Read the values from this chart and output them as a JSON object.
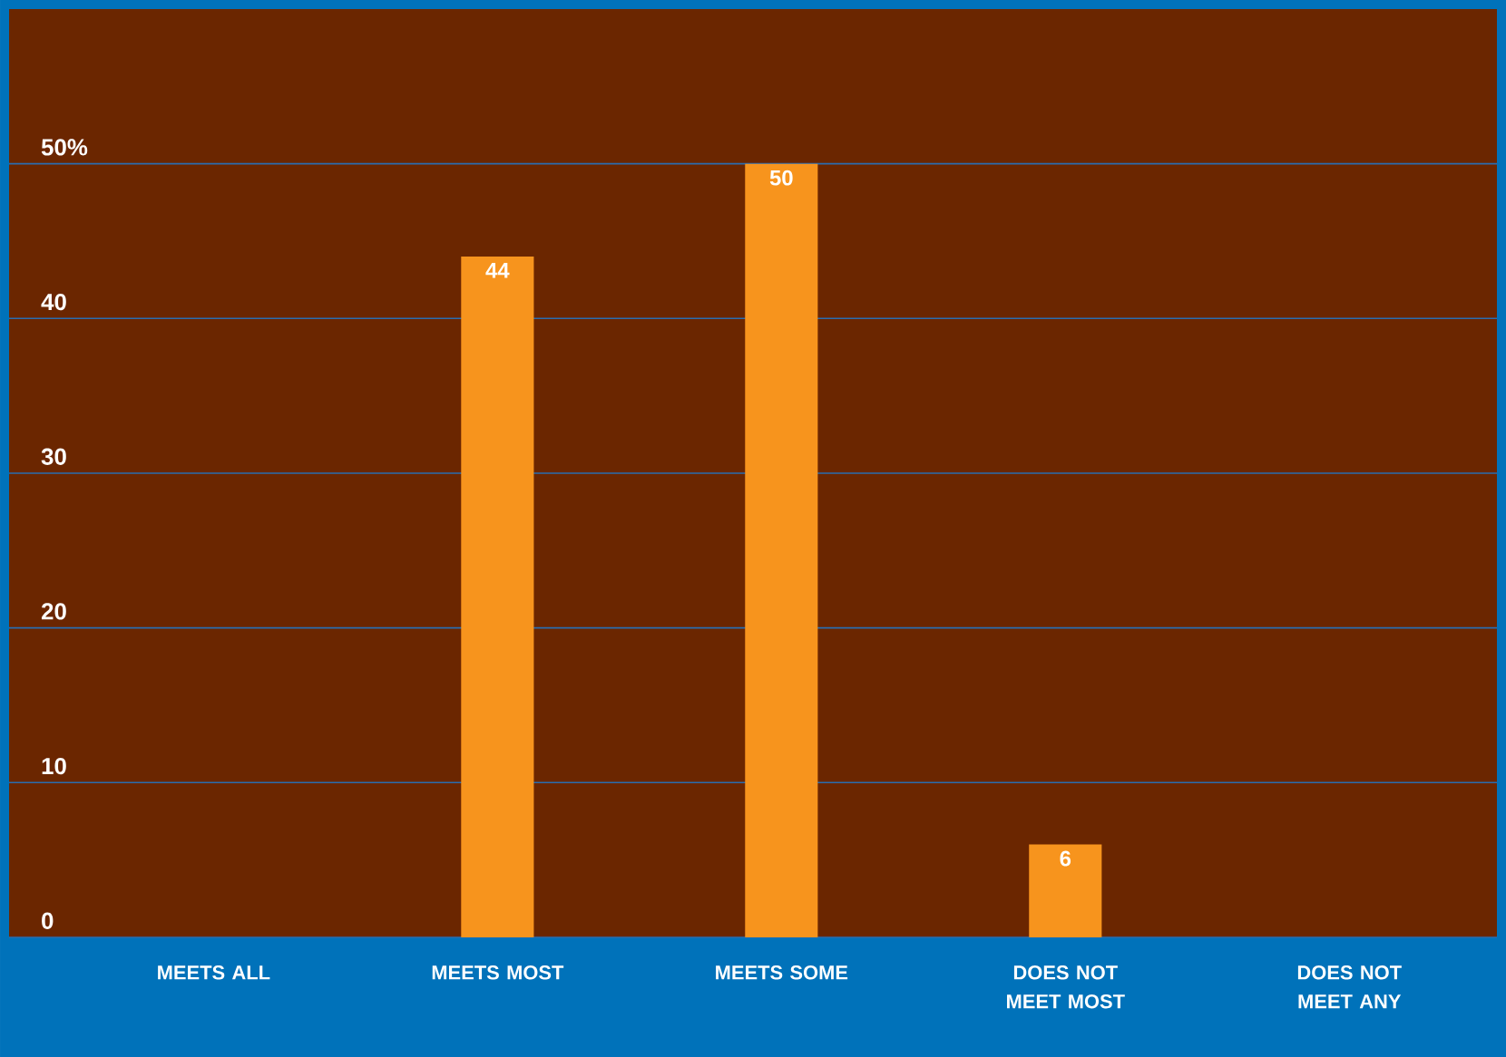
{
  "chart_data": {
    "type": "bar",
    "categories": [
      "MEETS ALL",
      "MEETS MOST",
      "MEETS SOME",
      "DOES NOT MEET MOST",
      "DOES NOT MEET ANY"
    ],
    "values": [
      0,
      44,
      50,
      6,
      0
    ],
    "color": "#f7941d",
    "value_labels": [
      null,
      "44",
      "50",
      "6",
      null
    ],
    "ylim": [
      0,
      60
    ],
    "yticks": [
      0,
      10,
      20,
      30,
      40,
      {
        "value": 50,
        "label": "50%"
      }
    ],
    "grid": "y"
  }
}
